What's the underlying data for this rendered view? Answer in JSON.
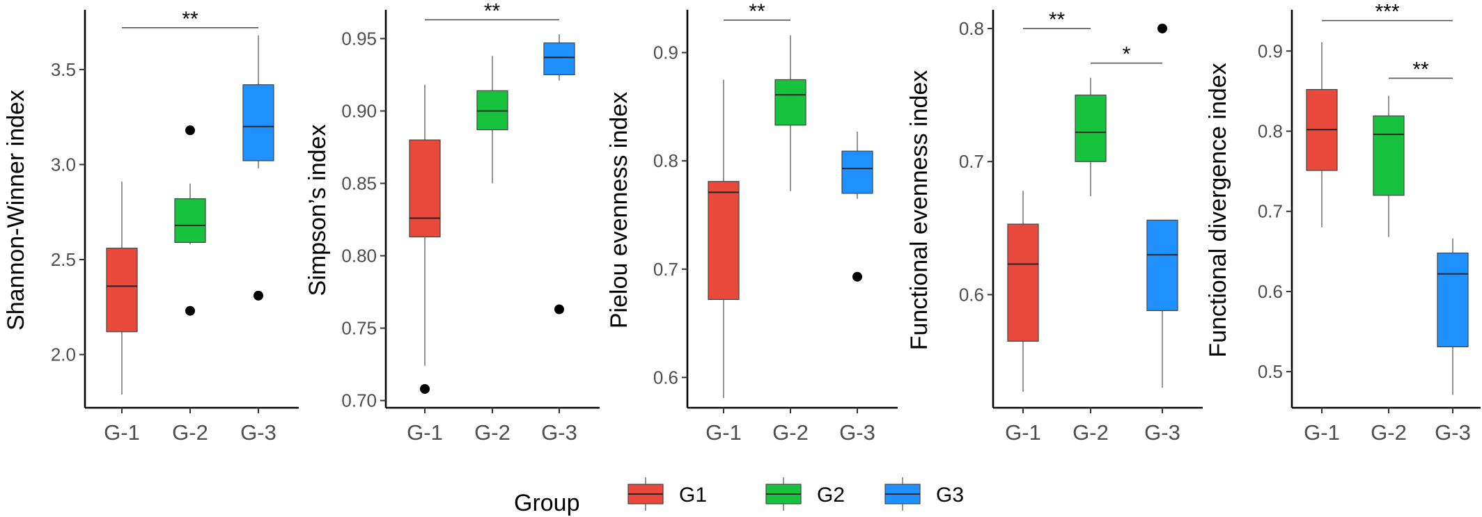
{
  "legend": {
    "title": "Group",
    "items": [
      {
        "label": "G1",
        "color": "#E8493B"
      },
      {
        "label": "G2",
        "color": "#17C23D"
      },
      {
        "label": "G3",
        "color": "#1E90FF"
      }
    ]
  },
  "chart_data": [
    {
      "type": "box",
      "ylabel": "Shannon-Winner index",
      "categories": [
        "G-1",
        "G-2",
        "G-3"
      ],
      "ylim": [
        1.72,
        3.8
      ],
      "yticks": [
        {
          "value": 2.0,
          "label": "2.0"
        },
        {
          "value": 2.5,
          "label": "2.5"
        },
        {
          "value": 3.0,
          "label": "3.0"
        },
        {
          "value": 3.5,
          "label": "3.5"
        }
      ],
      "boxes": [
        {
          "group": "G-1",
          "color": "#E8493B",
          "low": 1.79,
          "q1": 2.12,
          "median": 2.36,
          "q3": 2.56,
          "high": 2.91,
          "outliers": []
        },
        {
          "group": "G-2",
          "color": "#17C23D",
          "low": 2.58,
          "q1": 2.59,
          "median": 2.68,
          "q3": 2.82,
          "high": 2.9,
          "outliers": [
            3.18,
            2.23
          ]
        },
        {
          "group": "G-3",
          "color": "#1E90FF",
          "low": 2.98,
          "q1": 3.02,
          "median": 3.2,
          "q3": 3.42,
          "high": 3.68,
          "outliers": [
            2.31
          ]
        }
      ],
      "significance": [
        {
          "from": 0,
          "to": 2,
          "y": 3.72,
          "label": "**"
        }
      ]
    },
    {
      "type": "box",
      "ylabel": "Simpson’s index",
      "categories": [
        "G-1",
        "G-2",
        "G-3"
      ],
      "ylim": [
        0.695,
        0.968
      ],
      "yticks": [
        {
          "value": 0.7,
          "label": "0.70"
        },
        {
          "value": 0.75,
          "label": "0.75"
        },
        {
          "value": 0.8,
          "label": "0.80"
        },
        {
          "value": 0.85,
          "label": "0.85"
        },
        {
          "value": 0.9,
          "label": "0.90"
        },
        {
          "value": 0.95,
          "label": "0.95"
        }
      ],
      "boxes": [
        {
          "group": "G-1",
          "color": "#E8493B",
          "low": 0.724,
          "q1": 0.813,
          "median": 0.826,
          "q3": 0.88,
          "high": 0.918,
          "outliers": [
            0.708
          ]
        },
        {
          "group": "G-2",
          "color": "#17C23D",
          "low": 0.85,
          "q1": 0.887,
          "median": 0.9,
          "q3": 0.914,
          "high": 0.938,
          "outliers": []
        },
        {
          "group": "G-3",
          "color": "#1E90FF",
          "low": 0.921,
          "q1": 0.925,
          "median": 0.937,
          "q3": 0.947,
          "high": 0.953,
          "outliers": [
            0.763
          ]
        }
      ],
      "significance": [
        {
          "from": 0,
          "to": 2,
          "y": 0.963,
          "label": "**"
        }
      ]
    },
    {
      "type": "box",
      "ylabel": "Pielou evenness index",
      "categories": [
        "G-1",
        "G-2",
        "G-3"
      ],
      "ylim": [
        0.572,
        0.937
      ],
      "yticks": [
        {
          "value": 0.6,
          "label": "0.6"
        },
        {
          "value": 0.7,
          "label": "0.7"
        },
        {
          "value": 0.8,
          "label": "0.8"
        },
        {
          "value": 0.9,
          "label": "0.9"
        }
      ],
      "boxes": [
        {
          "group": "G-1",
          "color": "#E8493B",
          "low": 0.581,
          "q1": 0.672,
          "median": 0.771,
          "q3": 0.781,
          "high": 0.875,
          "outliers": []
        },
        {
          "group": "G-2",
          "color": "#17C23D",
          "low": 0.772,
          "q1": 0.833,
          "median": 0.861,
          "q3": 0.875,
          "high": 0.916,
          "outliers": []
        },
        {
          "group": "G-3",
          "color": "#1E90FF",
          "low": 0.765,
          "q1": 0.77,
          "median": 0.793,
          "q3": 0.809,
          "high": 0.827,
          "outliers": [
            0.693
          ]
        }
      ],
      "significance": [
        {
          "from": 0,
          "to": 1,
          "y": 0.93,
          "label": "**"
        }
      ]
    },
    {
      "type": "box",
      "ylabel": "Functional evenness index",
      "categories": [
        "G-1",
        "G-2",
        "G-3"
      ],
      "ylim": [
        0.515,
        0.812
      ],
      "yticks": [
        {
          "value": 0.6,
          "label": "0.6"
        },
        {
          "value": 0.7,
          "label": "0.7"
        },
        {
          "value": 0.8,
          "label": "0.8"
        }
      ],
      "boxes": [
        {
          "group": "G-1",
          "color": "#E8493B",
          "low": 0.527,
          "q1": 0.565,
          "median": 0.623,
          "q3": 0.653,
          "high": 0.678,
          "outliers": []
        },
        {
          "group": "G-2",
          "color": "#17C23D",
          "low": 0.674,
          "q1": 0.7,
          "median": 0.722,
          "q3": 0.75,
          "high": 0.763,
          "outliers": []
        },
        {
          "group": "G-3",
          "color": "#1E90FF",
          "low": 0.53,
          "q1": 0.588,
          "median": 0.63,
          "q3": 0.656,
          "high": 0.656,
          "outliers": [
            0.8
          ]
        }
      ],
      "significance": [
        {
          "from": 0,
          "to": 1,
          "y": 0.8,
          "label": "**"
        },
        {
          "from": 1,
          "to": 2,
          "y": 0.774,
          "label": "*"
        }
      ]
    },
    {
      "type": "box",
      "ylabel": "Functional divergence index",
      "categories": [
        "G-1",
        "G-2",
        "G-3"
      ],
      "ylim": [
        0.455,
        0.948
      ],
      "yticks": [
        {
          "value": 0.5,
          "label": "0.5"
        },
        {
          "value": 0.6,
          "label": "0.6"
        },
        {
          "value": 0.7,
          "label": "0.7"
        },
        {
          "value": 0.8,
          "label": "0.8"
        },
        {
          "value": 0.9,
          "label": "0.9"
        }
      ],
      "boxes": [
        {
          "group": "G-1",
          "color": "#E8493B",
          "low": 0.68,
          "q1": 0.751,
          "median": 0.802,
          "q3": 0.852,
          "high": 0.911,
          "outliers": []
        },
        {
          "group": "G-2",
          "color": "#17C23D",
          "low": 0.668,
          "q1": 0.72,
          "median": 0.796,
          "q3": 0.819,
          "high": 0.844,
          "outliers": []
        },
        {
          "group": "G-3",
          "color": "#1E90FF",
          "low": 0.471,
          "q1": 0.531,
          "median": 0.622,
          "q3": 0.648,
          "high": 0.666,
          "outliers": []
        }
      ],
      "significance": [
        {
          "from": 0,
          "to": 2,
          "y": 0.938,
          "label": "***"
        },
        {
          "from": 1,
          "to": 2,
          "y": 0.866,
          "label": "**"
        }
      ]
    }
  ]
}
